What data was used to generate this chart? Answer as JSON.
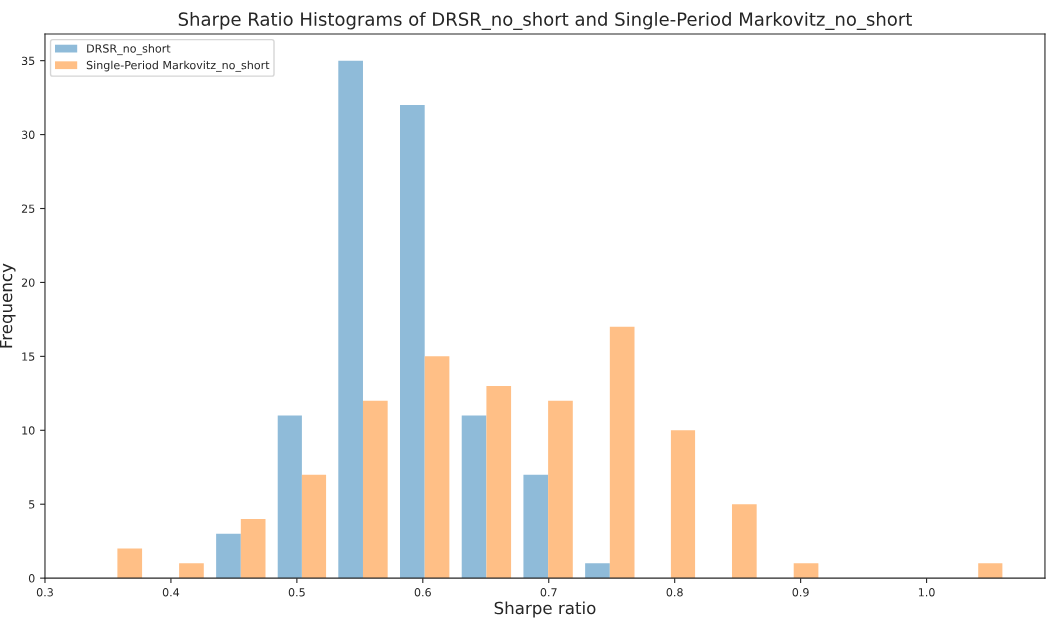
{
  "chart_data": {
    "type": "histogram",
    "title": "Sharpe Ratio Histograms of DRSR_no_short and Single-Period Markovitz_no_short",
    "xlabel": "Sharpe ratio",
    "ylabel": "Frequency",
    "bins": [
      0.333,
      0.382,
      0.431,
      0.48,
      0.528,
      0.577,
      0.626,
      0.675,
      0.724,
      0.773,
      0.821,
      0.87,
      0.919,
      1.017,
      1.065
    ],
    "series": [
      {
        "name": "DRSR_no_short",
        "color": "#8fbbd9",
        "values": [
          0,
          0,
          3,
          11,
          35,
          32,
          11,
          7,
          1,
          0,
          0,
          0,
          0,
          0
        ]
      },
      {
        "name": "Single-Period Markovitz_no_short",
        "color": "#ffbf86",
        "values": [
          2,
          1,
          4,
          7,
          12,
          15,
          13,
          12,
          17,
          10,
          5,
          1,
          0,
          1
        ]
      }
    ],
    "xlim": [
      0.3,
      1.094
    ],
    "ylim": [
      0,
      36.8
    ],
    "xticks": [
      0.3,
      0.4,
      0.5,
      0.6,
      0.7,
      0.8,
      0.9,
      {
        "value": 1.0,
        "label": "1.0"
      }
    ],
    "yticks": [
      0,
      5,
      10,
      15,
      20,
      25,
      30,
      35
    ],
    "legend": "top left",
    "grid": false
  }
}
